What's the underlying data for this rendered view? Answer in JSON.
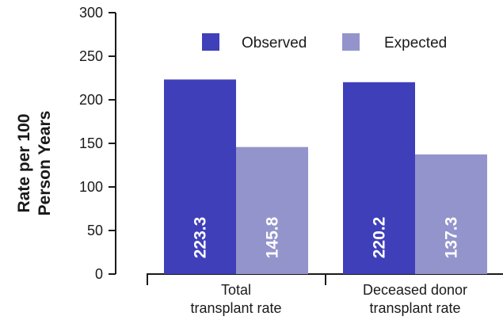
{
  "chart_data": {
    "type": "bar",
    "title": "",
    "xlabel": "",
    "ylabel_lines": [
      "Rate per 100",
      "Person Years"
    ],
    "ylim": [
      0,
      300
    ],
    "yticks": [
      0,
      50,
      100,
      150,
      200,
      250,
      300
    ],
    "categories": [
      [
        "Total",
        "transplant rate"
      ],
      [
        "Deceased donor",
        "transplant rate"
      ]
    ],
    "series": [
      {
        "name": "Observed",
        "color": "#3f3fba",
        "values": [
          223.3,
          220.2
        ],
        "labels": [
          "223.3",
          "220.2"
        ]
      },
      {
        "name": "Expected",
        "color": "#9494cc",
        "values": [
          145.8,
          137.3
        ],
        "labels": [
          "145.8",
          "137.3"
        ]
      }
    ],
    "legend_position": "top-right",
    "grid": false
  }
}
